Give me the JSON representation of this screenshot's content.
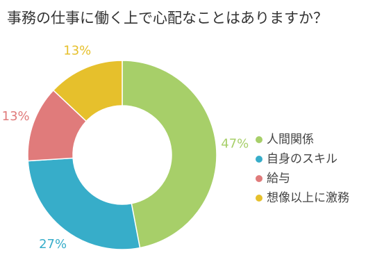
{
  "chart_data": {
    "type": "pie",
    "title": "事務の仕事に働く上で心配なことはありますか？",
    "categories": [
      "人間関係",
      "自身のスキル",
      "給与",
      "想像以上に激務"
    ],
    "values": [
      47,
      27,
      13,
      13
    ],
    "value_labels": [
      "47%",
      "27%",
      "13%",
      "13%"
    ],
    "colors": [
      "#a7cf69",
      "#37adc9",
      "#e07b7b",
      "#e6c02c"
    ],
    "donut": true,
    "legend_position": "right"
  }
}
